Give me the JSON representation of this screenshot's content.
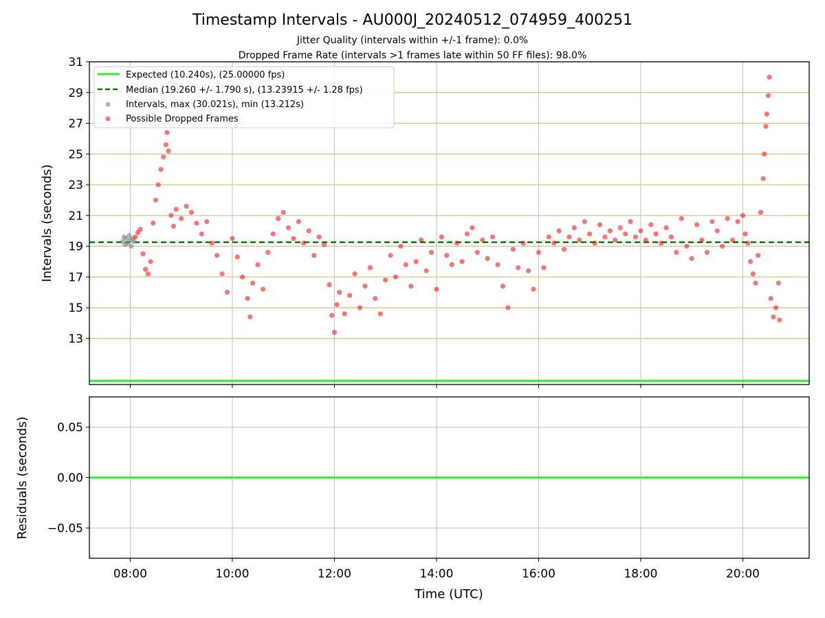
{
  "chart_data": [
    {
      "type": "scatter",
      "title": "Timestamp Intervals - AU000J_20240512_074959_400251",
      "subtitle_1": "Jitter Quality (intervals within +/-1 frame): 0.0%",
      "subtitle_2": "Dropped Frame Rate (intervals >1 frames late within 50 FF files): 98.0%",
      "ylabel": "Intervals (seconds)",
      "ylim": [
        10.0,
        31.0
      ],
      "xlim_hours": [
        7.2,
        21.3
      ],
      "y_ticks": [
        13,
        15,
        17,
        19,
        21,
        23,
        25,
        27,
        29,
        31
      ],
      "y_tick_labels": [
        "13",
        "15",
        "17",
        "19",
        "21",
        "23",
        "25",
        "27",
        "29",
        "31"
      ],
      "hgrid_color": "#d4c078",
      "grid": true,
      "legend_position": "upper left",
      "legend": [
        {
          "label": "Expected (10.240s), (25.00000 fps)",
          "style": "solid-line",
          "color": "#00ff00"
        },
        {
          "label": "Median (19.260 +/- 1.790 s), (13.23915 +/- 1.28 fps)",
          "style": "dashed-line",
          "color": "#008000"
        },
        {
          "label": "Intervals, max (30.021s), min (13.212s)",
          "style": "marker",
          "color": "#808080"
        },
        {
          "label": "Possible Dropped Frames",
          "style": "marker",
          "color": "#ff0000"
        }
      ],
      "expected_line": 10.24,
      "median_line": 19.26,
      "series": [
        {
          "name": "Intervals, max (30.021s), min (13.212s)",
          "color": "#808080",
          "points": [
            [
              7.85,
              19.3
            ],
            [
              7.88,
              19.6
            ],
            [
              7.9,
              19.1
            ],
            [
              7.92,
              19.5
            ],
            [
              7.95,
              19.2
            ],
            [
              7.98,
              19.7
            ],
            [
              8.0,
              19.4
            ],
            [
              8.02,
              19.0
            ],
            [
              8.05,
              19.5
            ],
            [
              8.07,
              19.3
            ]
          ]
        },
        {
          "name": "Possible Dropped Frames",
          "color": "#ff0000",
          "points": [
            [
              8.1,
              19.6
            ],
            [
              8.15,
              19.9
            ],
            [
              8.2,
              20.1
            ],
            [
              8.25,
              18.5
            ],
            [
              8.3,
              17.5
            ],
            [
              8.35,
              17.2
            ],
            [
              8.4,
              18.0
            ],
            [
              8.45,
              20.5
            ],
            [
              8.5,
              22.0
            ],
            [
              8.55,
              23.0
            ],
            [
              8.6,
              24.0
            ],
            [
              8.65,
              24.8
            ],
            [
              8.7,
              25.6
            ],
            [
              8.72,
              26.4
            ],
            [
              8.75,
              25.2
            ],
            [
              8.8,
              21.0
            ],
            [
              8.85,
              20.3
            ],
            [
              8.9,
              21.4
            ],
            [
              9.0,
              20.8
            ],
            [
              9.1,
              21.6
            ],
            [
              9.2,
              21.2
            ],
            [
              9.3,
              20.5
            ],
            [
              9.4,
              19.8
            ],
            [
              9.5,
              20.6
            ],
            [
              9.6,
              19.2
            ],
            [
              9.7,
              18.4
            ],
            [
              9.8,
              17.2
            ],
            [
              9.9,
              16.0
            ],
            [
              10.0,
              19.5
            ],
            [
              10.1,
              18.3
            ],
            [
              10.2,
              17.0
            ],
            [
              10.3,
              15.6
            ],
            [
              10.35,
              14.4
            ],
            [
              10.4,
              16.6
            ],
            [
              10.5,
              17.8
            ],
            [
              10.6,
              16.2
            ],
            [
              10.7,
              18.6
            ],
            [
              10.8,
              19.8
            ],
            [
              10.9,
              20.8
            ],
            [
              11.0,
              21.2
            ],
            [
              11.1,
              20.2
            ],
            [
              11.2,
              19.5
            ],
            [
              11.3,
              20.6
            ],
            [
              11.4,
              19.2
            ],
            [
              11.5,
              20.0
            ],
            [
              11.6,
              18.4
            ],
            [
              11.7,
              19.6
            ],
            [
              11.8,
              19.1
            ],
            [
              11.9,
              16.5
            ],
            [
              11.95,
              14.5
            ],
            [
              12.0,
              13.4
            ],
            [
              12.05,
              15.2
            ],
            [
              12.1,
              16.0
            ],
            [
              12.2,
              14.6
            ],
            [
              12.3,
              15.8
            ],
            [
              12.4,
              17.2
            ],
            [
              12.5,
              15.0
            ],
            [
              12.6,
              16.4
            ],
            [
              12.7,
              17.6
            ],
            [
              12.8,
              15.6
            ],
            [
              12.9,
              14.6
            ],
            [
              13.0,
              16.8
            ],
            [
              13.1,
              18.4
            ],
            [
              13.2,
              17.0
            ],
            [
              13.3,
              19.0
            ],
            [
              13.4,
              17.8
            ],
            [
              13.5,
              16.4
            ],
            [
              13.6,
              18.0
            ],
            [
              13.7,
              19.4
            ],
            [
              13.8,
              17.4
            ],
            [
              13.9,
              18.6
            ],
            [
              14.0,
              16.2
            ],
            [
              14.1,
              19.6
            ],
            [
              14.2,
              18.4
            ],
            [
              14.3,
              17.8
            ],
            [
              14.4,
              19.2
            ],
            [
              14.5,
              18.0
            ],
            [
              14.6,
              19.8
            ],
            [
              14.7,
              20.2
            ],
            [
              14.8,
              18.6
            ],
            [
              14.9,
              19.4
            ],
            [
              15.0,
              18.2
            ],
            [
              15.1,
              19.6
            ],
            [
              15.2,
              17.8
            ],
            [
              15.3,
              16.4
            ],
            [
              15.4,
              15.0
            ],
            [
              15.5,
              18.8
            ],
            [
              15.6,
              17.6
            ],
            [
              15.7,
              19.2
            ],
            [
              15.8,
              17.4
            ],
            [
              15.9,
              16.2
            ],
            [
              16.0,
              18.6
            ],
            [
              16.1,
              17.6
            ],
            [
              16.2,
              19.6
            ],
            [
              16.3,
              19.2
            ],
            [
              16.4,
              20.0
            ],
            [
              16.5,
              18.8
            ],
            [
              16.6,
              19.6
            ],
            [
              16.7,
              20.2
            ],
            [
              16.8,
              19.4
            ],
            [
              16.9,
              20.6
            ],
            [
              17.0,
              19.8
            ],
            [
              17.1,
              19.2
            ],
            [
              17.2,
              20.4
            ],
            [
              17.3,
              19.6
            ],
            [
              17.4,
              20.0
            ],
            [
              17.5,
              19.4
            ],
            [
              17.6,
              20.2
            ],
            [
              17.7,
              19.8
            ],
            [
              17.8,
              20.6
            ],
            [
              17.9,
              19.6
            ],
            [
              18.0,
              20.0
            ],
            [
              18.1,
              19.4
            ],
            [
              18.2,
              20.4
            ],
            [
              18.3,
              19.8
            ],
            [
              18.4,
              19.2
            ],
            [
              18.5,
              20.2
            ],
            [
              18.6,
              19.6
            ],
            [
              18.7,
              18.6
            ],
            [
              18.8,
              20.8
            ],
            [
              18.9,
              19.0
            ],
            [
              19.0,
              18.2
            ],
            [
              19.1,
              20.4
            ],
            [
              19.2,
              19.4
            ],
            [
              19.3,
              18.6
            ],
            [
              19.4,
              20.6
            ],
            [
              19.5,
              20.0
            ],
            [
              19.6,
              19.0
            ],
            [
              19.7,
              20.8
            ],
            [
              19.8,
              19.4
            ],
            [
              19.9,
              20.6
            ],
            [
              20.0,
              21.0
            ],
            [
              20.05,
              19.8
            ],
            [
              20.1,
              19.2
            ],
            [
              20.15,
              18.0
            ],
            [
              20.2,
              17.2
            ],
            [
              20.25,
              16.6
            ],
            [
              20.3,
              18.4
            ],
            [
              20.35,
              21.2
            ],
            [
              20.4,
              23.4
            ],
            [
              20.42,
              25.0
            ],
            [
              20.45,
              26.8
            ],
            [
              20.47,
              27.6
            ],
            [
              20.5,
              28.8
            ],
            [
              20.52,
              30.0
            ],
            [
              20.55,
              15.6
            ],
            [
              20.6,
              14.4
            ],
            [
              20.65,
              15.0
            ],
            [
              20.7,
              16.6
            ],
            [
              20.72,
              14.2
            ]
          ]
        }
      ]
    },
    {
      "type": "line",
      "ylabel": "Residuals (seconds)",
      "xlabel": "Time (UTC)",
      "ylim": [
        -0.08,
        0.08
      ],
      "y_ticks": [
        0.05,
        0.0,
        -0.05
      ],
      "y_tick_labels": [
        "0.05",
        "0.00",
        "−0.05"
      ],
      "x_ticks_hours": [
        8,
        10,
        12,
        14,
        16,
        18,
        20
      ],
      "x_tick_labels": [
        "08:00",
        "10:00",
        "12:00",
        "14:00",
        "16:00",
        "18:00",
        "20:00"
      ],
      "grid": true,
      "series": [
        {
          "values": [
            0.0
          ],
          "color": "#00ff00"
        }
      ]
    }
  ]
}
